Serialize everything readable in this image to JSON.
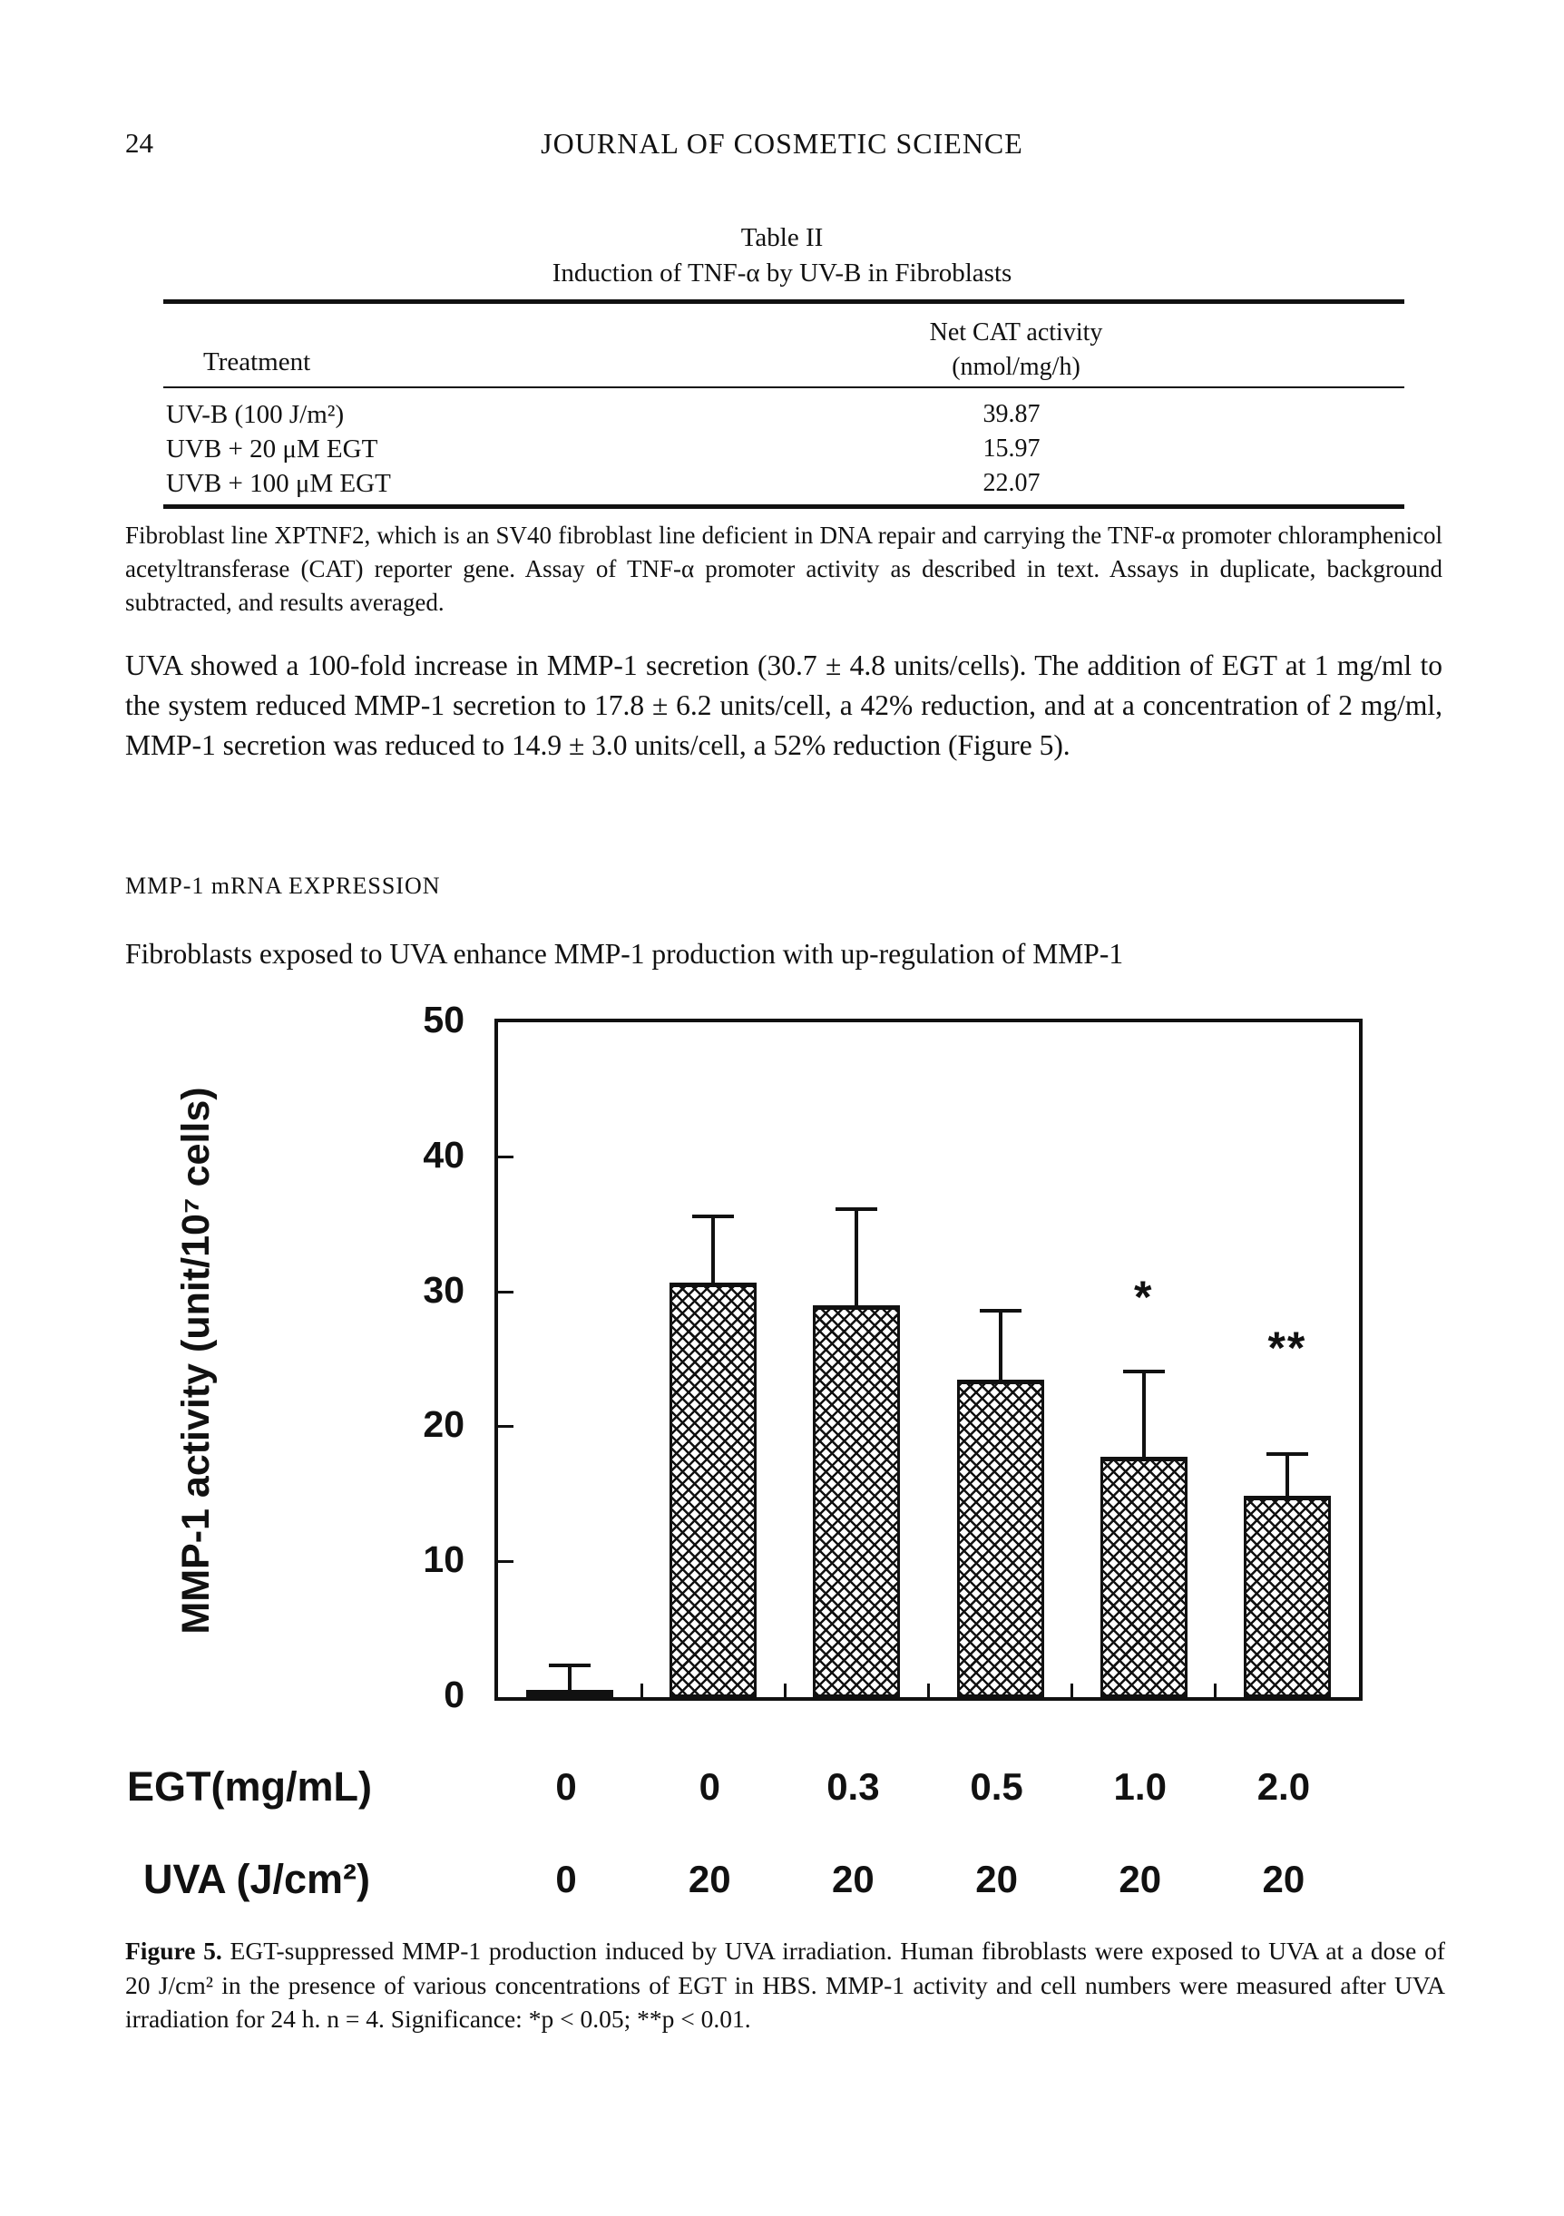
{
  "page": {
    "number": "24",
    "journal_title": "JOURNAL OF COSMETIC SCIENCE"
  },
  "table": {
    "title": "Table II",
    "subtitle": "Induction of TNF-α by UV-B in Fibroblasts",
    "col_treatment": "Treatment",
    "col_activity_line1": "Net CAT activity",
    "col_activity_line2": "(nmol/mg/h)",
    "rows": [
      {
        "treatment": "UV-B (100 J/m²)",
        "activity": "39.87"
      },
      {
        "treatment": "UVB + 20 μM EGT",
        "activity": "15.97"
      },
      {
        "treatment": "UVB + 100 μM EGT",
        "activity": "22.07"
      }
    ],
    "footnote": "Fibroblast line XPTNF2, which is an SV40 fibroblast line deficient in DNA repair and carrying the TNF-α promoter chloramphenicol acetyltransferase (CAT) reporter gene. Assay of TNF-α promoter activity as described in text. Assays in duplicate, background subtracted, and results averaged."
  },
  "body": {
    "paragraph1": "UVA showed a 100-fold increase in MMP-1 secretion (30.7 ± 4.8 units/cells). The addition of EGT at 1 mg/ml to the system reduced MMP-1 secretion to 17.8 ± 6.2 units/cell, a 42% reduction, and at a concentration of 2 mg/ml, MMP-1 secretion was reduced to 14.9 ± 3.0 units/cell, a 52% reduction (Figure 5).",
    "section_heading": "MMP-1 mRNA EXPRESSION",
    "paragraph2": "Fibroblasts exposed to UVA enhance MMP-1 production with up-regulation of MMP-1"
  },
  "figure": {
    "caption_label": "Figure 5.",
    "caption_text": " EGT-suppressed MMP-1 production induced by UVA irradiation. Human fibroblasts were exposed to UVA at a dose of 20 J/cm² in the presence of various concentrations of EGT in HBS. MMP-1 activity and cell numbers were measured after UVA irradiation for 24 h. n = 4. Significance: *p < 0.05; **p < 0.01."
  },
  "chart_data": {
    "type": "bar",
    "title": "",
    "ylabel": "MMP-1 activity (unit/10⁷ cells)",
    "ylim": [
      0,
      50
    ],
    "yticks": [
      0,
      10,
      20,
      30,
      40,
      50
    ],
    "grid": false,
    "legend": "none",
    "bar_fill": "black-crosshatch-on-white",
    "bar_color": "#111111",
    "x_rows": [
      {
        "label": "EGT(mg/mL)",
        "values": [
          "0",
          "0",
          "0.3",
          "0.5",
          "1.0",
          "2.0"
        ]
      },
      {
        "label": "UVA (J/cm²)",
        "values": [
          "0",
          "20",
          "20",
          "20",
          "20",
          "20"
        ]
      }
    ],
    "values": [
      0.4,
      30.7,
      29.0,
      23.5,
      17.8,
      14.9
    ],
    "errors_plus": [
      1.8,
      4.8,
      7.0,
      5.0,
      6.2,
      3.0
    ],
    "significance": [
      "",
      "",
      "",
      "",
      "*",
      "**"
    ]
  }
}
